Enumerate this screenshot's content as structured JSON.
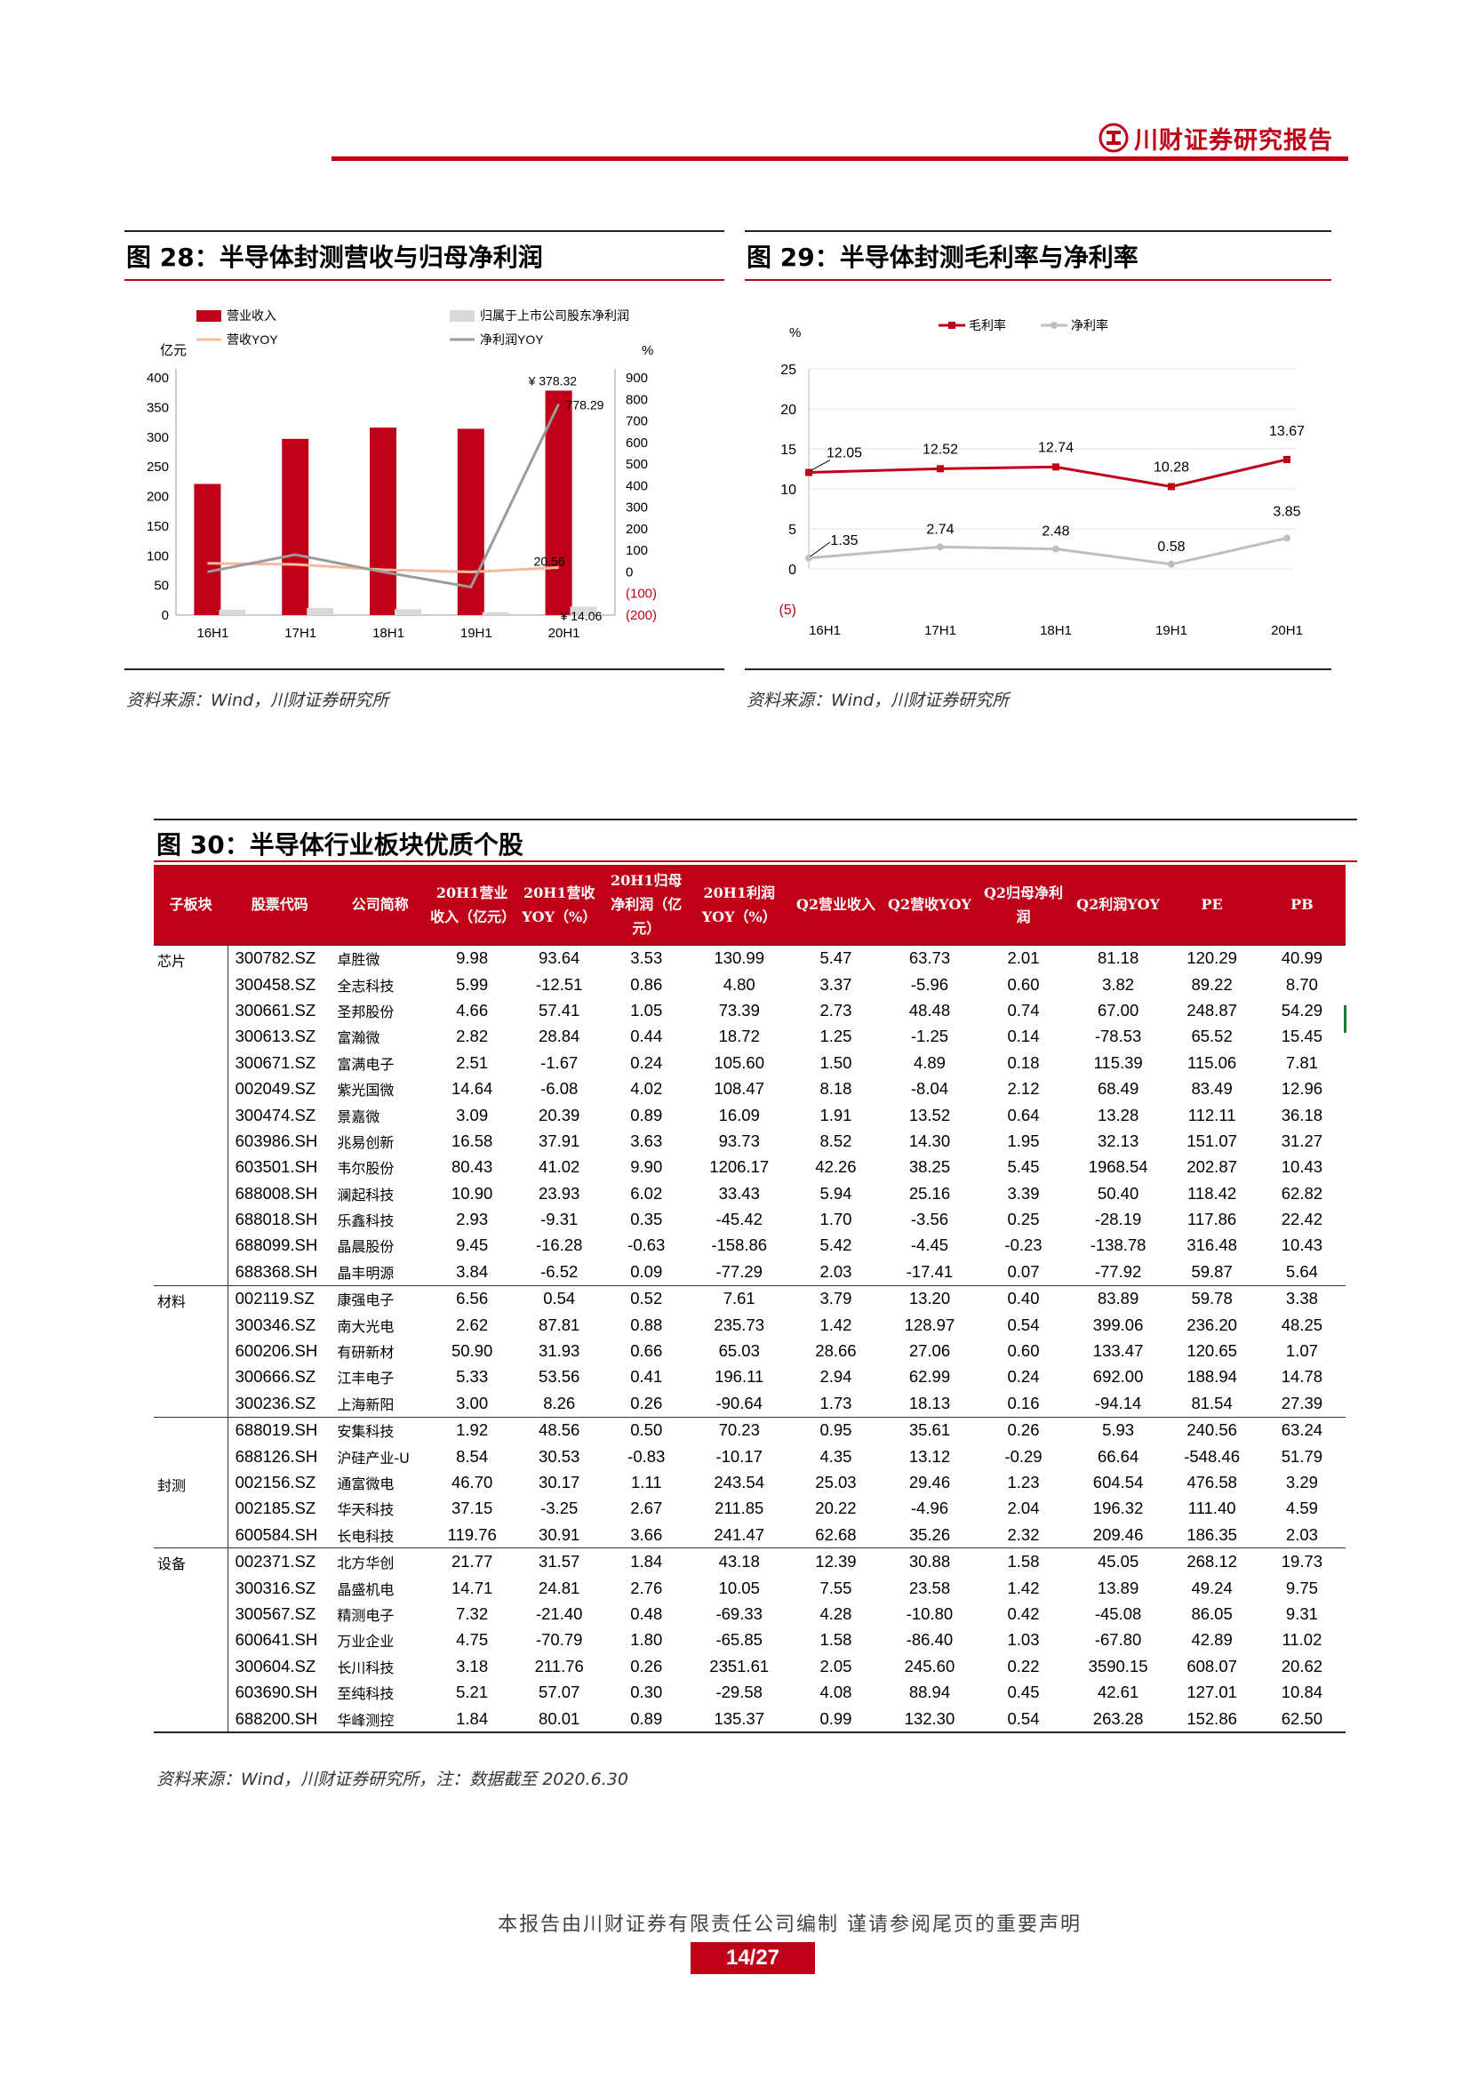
{
  "header": {
    "brand": "川财证券研究报告"
  },
  "fig28": {
    "title": "图 28：半导体封测营收与归母净利润",
    "source": "资料来源：Wind，川财证券研究所",
    "chart_data": {
      "type": "bar",
      "categories": [
        "16H1",
        "17H1",
        "18H1",
        "19H1",
        "20H1"
      ],
      "series": [
        {
          "name": "营业收入",
          "kind": "bar",
          "axis": "left",
          "color": "#c00018",
          "values": [
            221,
            297,
            316,
            314,
            378.32
          ]
        },
        {
          "name": "归属于上市公司股东净利润",
          "kind": "bar",
          "axis": "left",
          "color": "#d9d9d9",
          "values": [
            9,
            12,
            10,
            5,
            14.06
          ]
        },
        {
          "name": "营收YOY",
          "kind": "line",
          "axis": "right",
          "color": "#f5b99b",
          "values": [
            40,
            35,
            10,
            0,
            20.56
          ]
        },
        {
          "name": "净利润YOY",
          "kind": "line",
          "axis": "right",
          "color": "#9b9b9b",
          "values": [
            0,
            80,
            0,
            -70,
            778.29
          ]
        }
      ],
      "left_axis": {
        "unit": "亿元",
        "ylim": [
          0,
          400
        ],
        "ticks": [
          "0",
          "50",
          "100",
          "150",
          "200",
          "250",
          "300",
          "350",
          "400"
        ]
      },
      "right_axis": {
        "unit": "%",
        "ylim": [
          -200,
          900
        ],
        "ticks": [
          "(200)",
          "(100)",
          "0",
          "100",
          "200",
          "300",
          "400",
          "500",
          "600",
          "700",
          "800",
          "900"
        ]
      },
      "annotations": [
        "¥ 378.32",
        "778.29",
        "20.56",
        "¥ 14.06"
      ]
    }
  },
  "fig29": {
    "title": "图 29：半导体封测毛利率与净利率",
    "source": "资料来源：Wind，川财证券研究所",
    "chart_data": {
      "type": "line",
      "categories": [
        "16H1",
        "17H1",
        "18H1",
        "19H1",
        "20H1"
      ],
      "series": [
        {
          "name": "毛利率",
          "color": "#c00018",
          "values": [
            12.05,
            12.52,
            12.74,
            10.28,
            13.67
          ]
        },
        {
          "name": "净利率",
          "color": "#bfbfbf",
          "values": [
            1.35,
            2.74,
            2.48,
            0.58,
            3.85
          ]
        }
      ],
      "y_unit": "%",
      "ylim": [
        -5,
        25
      ],
      "yticks": [
        "(5)",
        "0",
        "5",
        "10",
        "15",
        "20",
        "25"
      ],
      "data_labels": {
        "毛利率": [
          "12.05",
          "12.52",
          "12.74",
          "10.28",
          "13.67"
        ],
        "净利率": [
          "1.35",
          "2.74",
          "2.48",
          "0.58",
          "3.85"
        ]
      },
      "grid": true
    }
  },
  "fig30": {
    "title": "图 30：半导体行业板块优质个股",
    "source": "资料来源：Wind，川财证券研究所，注：数据截至 2020.6.30",
    "columns": [
      "子板块",
      "股票代码",
      "公司简称",
      "20H1营业收入（亿元）",
      "20H1营收YOY（%）",
      "20H1归母净利润（亿元）",
      "20H1利润YOY（%）",
      "Q2营业收入",
      "Q2营收YOY",
      "Q2归母净利润",
      "Q2利润YOY",
      "PE",
      "PB"
    ],
    "groups": [
      {
        "name": "芯片",
        "rows": [
          [
            "300782.SZ",
            "卓胜微",
            "9.98",
            "93.64",
            "3.53",
            "130.99",
            "5.47",
            "63.73",
            "2.01",
            "81.18",
            "120.29",
            "40.99"
          ],
          [
            "300458.SZ",
            "全志科技",
            "5.99",
            "-12.51",
            "0.86",
            "4.80",
            "3.37",
            "-5.96",
            "0.60",
            "3.82",
            "89.22",
            "8.70"
          ],
          [
            "300661.SZ",
            "圣邦股份",
            "4.66",
            "57.41",
            "1.05",
            "73.39",
            "2.73",
            "48.48",
            "0.74",
            "67.00",
            "248.87",
            "54.29"
          ],
          [
            "300613.SZ",
            "富瀚微",
            "2.82",
            "28.84",
            "0.44",
            "18.72",
            "1.25",
            "-1.25",
            "0.14",
            "-78.53",
            "65.52",
            "15.45"
          ],
          [
            "300671.SZ",
            "富满电子",
            "2.51",
            "-1.67",
            "0.24",
            "105.60",
            "1.50",
            "4.89",
            "0.18",
            "115.39",
            "115.06",
            "7.81"
          ],
          [
            "002049.SZ",
            "紫光国微",
            "14.64",
            "-6.08",
            "4.02",
            "108.47",
            "8.18",
            "-8.04",
            "2.12",
            "68.49",
            "83.49",
            "12.96"
          ],
          [
            "300474.SZ",
            "景嘉微",
            "3.09",
            "20.39",
            "0.89",
            "16.09",
            "1.91",
            "13.52",
            "0.64",
            "13.28",
            "112.11",
            "36.18"
          ],
          [
            "603986.SH",
            "兆易创新",
            "16.58",
            "37.91",
            "3.63",
            "93.73",
            "8.52",
            "14.30",
            "1.95",
            "32.13",
            "151.07",
            "31.27"
          ],
          [
            "603501.SH",
            "韦尔股份",
            "80.43",
            "41.02",
            "9.90",
            "1206.17",
            "42.26",
            "38.25",
            "5.45",
            "1968.54",
            "202.87",
            "10.43"
          ],
          [
            "688008.SH",
            "澜起科技",
            "10.90",
            "23.93",
            "6.02",
            "33.43",
            "5.94",
            "25.16",
            "3.39",
            "50.40",
            "118.42",
            "62.82"
          ],
          [
            "688018.SH",
            "乐鑫科技",
            "2.93",
            "-9.31",
            "0.35",
            "-45.42",
            "1.70",
            "-3.56",
            "0.25",
            "-28.19",
            "117.86",
            "22.42"
          ],
          [
            "688099.SH",
            "晶晨股份",
            "9.45",
            "-16.28",
            "-0.63",
            "-158.86",
            "5.42",
            "-4.45",
            "-0.23",
            "-138.78",
            "316.48",
            "10.43"
          ],
          [
            "688368.SH",
            "晶丰明源",
            "3.84",
            "-6.52",
            "0.09",
            "-77.29",
            "2.03",
            "-17.41",
            "0.07",
            "-77.92",
            "59.87",
            "5.64"
          ]
        ]
      },
      {
        "name": "材料",
        "rows": [
          [
            "002119.SZ",
            "康强电子",
            "6.56",
            "0.54",
            "0.52",
            "7.61",
            "3.79",
            "13.20",
            "0.40",
            "83.89",
            "59.78",
            "3.38"
          ],
          [
            "300346.SZ",
            "南大光电",
            "2.62",
            "87.81",
            "0.88",
            "235.73",
            "1.42",
            "128.97",
            "0.54",
            "399.06",
            "236.20",
            "48.25"
          ],
          [
            "600206.SH",
            "有研新材",
            "50.90",
            "31.93",
            "0.66",
            "65.03",
            "28.66",
            "27.06",
            "0.60",
            "133.47",
            "120.65",
            "1.07"
          ],
          [
            "300666.SZ",
            "江丰电子",
            "5.33",
            "53.56",
            "0.41",
            "196.11",
            "2.94",
            "62.99",
            "0.24",
            "692.00",
            "188.94",
            "14.78"
          ],
          [
            "300236.SZ",
            "上海新阳",
            "3.00",
            "8.26",
            "0.26",
            "-90.64",
            "1.73",
            "18.13",
            "0.16",
            "-94.14",
            "81.54",
            "27.39"
          ]
        ]
      },
      {
        "name": "封测",
        "rows": [
          [
            "688019.SH",
            "安集科技",
            "1.92",
            "48.56",
            "0.50",
            "70.23",
            "0.95",
            "35.61",
            "0.26",
            "5.93",
            "240.56",
            "63.24"
          ],
          [
            "688126.SH",
            "沪硅产业-U",
            "8.54",
            "30.53",
            "-0.83",
            "-10.17",
            "4.35",
            "13.12",
            "-0.29",
            "66.64",
            "-548.46",
            "51.79"
          ],
          [
            "002156.SZ",
            "通富微电",
            "46.70",
            "30.17",
            "1.11",
            "243.54",
            "25.03",
            "29.46",
            "1.23",
            "604.54",
            "476.58",
            "3.29"
          ],
          [
            "002185.SZ",
            "华天科技",
            "37.15",
            "-3.25",
            "2.67",
            "211.85",
            "20.22",
            "-4.96",
            "2.04",
            "196.32",
            "111.40",
            "4.59"
          ],
          [
            "600584.SH",
            "长电科技",
            "119.76",
            "30.91",
            "3.66",
            "241.47",
            "62.68",
            "35.26",
            "2.32",
            "209.46",
            "186.35",
            "2.03"
          ]
        ]
      },
      {
        "name": "设备",
        "rows": [
          [
            "002371.SZ",
            "北方华创",
            "21.77",
            "31.57",
            "1.84",
            "43.18",
            "12.39",
            "30.88",
            "1.58",
            "45.05",
            "268.12",
            "19.73"
          ],
          [
            "300316.SZ",
            "晶盛机电",
            "14.71",
            "24.81",
            "2.76",
            "10.05",
            "7.55",
            "23.58",
            "1.42",
            "13.89",
            "49.24",
            "9.75"
          ],
          [
            "300567.SZ",
            "精测电子",
            "7.32",
            "-21.40",
            "0.48",
            "-69.33",
            "4.28",
            "-10.80",
            "0.42",
            "-45.08",
            "86.05",
            "9.31"
          ],
          [
            "600641.SH",
            "万业企业",
            "4.75",
            "-70.79",
            "1.80",
            "-65.85",
            "1.58",
            "-86.40",
            "1.03",
            "-67.80",
            "42.89",
            "11.02"
          ],
          [
            "300604.SZ",
            "长川科技",
            "3.18",
            "211.76",
            "0.26",
            "2351.61",
            "2.05",
            "245.60",
            "0.22",
            "3590.15",
            "608.07",
            "20.62"
          ],
          [
            "603690.SH",
            "至纯科技",
            "5.21",
            "57.07",
            "0.30",
            "-29.58",
            "4.08",
            "88.94",
            "0.45",
            "42.61",
            "127.01",
            "10.84"
          ],
          [
            "688200.SH",
            "华峰测控",
            "1.84",
            "80.01",
            "0.89",
            "135.37",
            "0.99",
            "132.30",
            "0.54",
            "263.28",
            "152.86",
            "62.50"
          ]
        ]
      }
    ]
  },
  "footer": {
    "note": "本报告由川财证券有限责任公司编制 谨请参阅尾页的重要声明",
    "page": "14/27"
  }
}
